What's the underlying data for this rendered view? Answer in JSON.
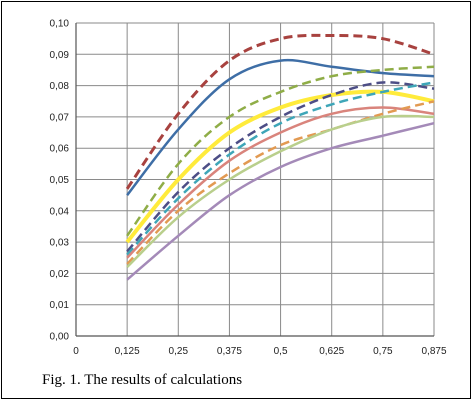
{
  "caption": "Fig. 1. The results of calculations",
  "chart_data": {
    "type": "line",
    "title": "",
    "xlabel": "",
    "ylabel": "",
    "xlim": [
      0,
      0.875
    ],
    "ylim": [
      0,
      0.1
    ],
    "grid": true,
    "x_ticks": [
      "0",
      "0,125",
      "0,25",
      "0,375",
      "0,5",
      "0,625",
      "0,75",
      "0,875"
    ],
    "y_ticks": [
      "0,00",
      "0,01",
      "0,02",
      "0,03",
      "0,04",
      "0,05",
      "0,06",
      "0,07",
      "0,08",
      "0,09",
      "0,10"
    ],
    "x": [
      0.125,
      0.25,
      0.375,
      0.5,
      0.625,
      0.75,
      0.875
    ],
    "series": [
      {
        "color": "#a8423f",
        "dashed": true,
        "width": 3,
        "values": [
          0.047,
          0.071,
          0.088,
          0.095,
          0.096,
          0.095,
          0.09
        ]
      },
      {
        "color": "#3e6ea6",
        "dashed": false,
        "width": 2.5,
        "values": [
          0.045,
          0.066,
          0.082,
          0.088,
          0.086,
          0.084,
          0.083
        ]
      },
      {
        "color": "#8fad47",
        "dashed": true,
        "width": 2.5,
        "values": [
          0.032,
          0.055,
          0.07,
          0.078,
          0.083,
          0.085,
          0.086
        ]
      },
      {
        "color": "#ffeb3b",
        "dashed": false,
        "width": 4,
        "values": [
          0.03,
          0.05,
          0.065,
          0.073,
          0.077,
          0.078,
          0.075
        ]
      },
      {
        "color": "#4d4e86",
        "dashed": true,
        "width": 2.5,
        "values": [
          0.027,
          0.046,
          0.06,
          0.07,
          0.077,
          0.081,
          0.079
        ]
      },
      {
        "color": "#3ea6b8",
        "dashed": true,
        "width": 2.5,
        "values": [
          0.026,
          0.044,
          0.058,
          0.068,
          0.074,
          0.078,
          0.081
        ]
      },
      {
        "color": "#d9847c",
        "dashed": false,
        "width": 2.5,
        "values": [
          0.025,
          0.042,
          0.056,
          0.065,
          0.071,
          0.073,
          0.071
        ]
      },
      {
        "color": "#e29a52",
        "dashed": true,
        "width": 2.5,
        "values": [
          0.023,
          0.04,
          0.052,
          0.061,
          0.066,
          0.071,
          0.075
        ]
      },
      {
        "color": "#b9cf8c",
        "dashed": false,
        "width": 2.5,
        "values": [
          0.022,
          0.038,
          0.05,
          0.059,
          0.066,
          0.07,
          0.07
        ]
      },
      {
        "color": "#a48ab8",
        "dashed": false,
        "width": 2.5,
        "values": [
          0.018,
          0.032,
          0.045,
          0.054,
          0.06,
          0.064,
          0.068
        ]
      }
    ]
  }
}
